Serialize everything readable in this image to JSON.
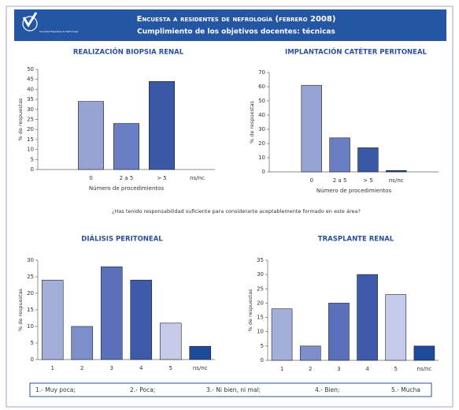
{
  "header": {
    "logo_text": "Sociedad Española de Nefrología",
    "title": "Encuesta a residentes de nefrología (febrero 2008)",
    "subtitle": "Cumplimiento de los objetivos docentes: técnicas"
  },
  "question": "¿Has tenido responsabilidad suficiente para considerarte aceptablemente formado en este área?",
  "legend_items": [
    "1.- Muy poca;",
    "2.- Poca;",
    "3.- Ni bien, ni mal;",
    "4.- Bien;",
    "5.- Mucha"
  ],
  "chart_data": [
    {
      "type": "bar",
      "title": "REALIZACIÓN BIOPSIA RENAL",
      "ylabel": "% de respuestas",
      "xlabel": "Número de procedimientos",
      "categories": [
        null,
        "0",
        "2 a 5",
        "> 5",
        "ns/nc"
      ],
      "values": [
        null,
        34,
        23,
        44,
        0
      ],
      "colors": [
        null,
        "#96a3d3",
        "#6a7fc3",
        "#3b58a6",
        "#1a4797"
      ],
      "ylim": [
        0,
        50
      ],
      "yticks": [
        0,
        5,
        10,
        15,
        20,
        25,
        30,
        35,
        40,
        45,
        50
      ]
    },
    {
      "type": "bar",
      "title": "IMPLANTACIÓN CATÉTER PERITONEAL",
      "ylabel": "% de respuestas",
      "xlabel": "Número de procedimientos",
      "categories": [
        null,
        "0",
        "2 a 5",
        "> 5",
        "ns/nc",
        null
      ],
      "values": [
        null,
        61,
        24,
        17,
        1,
        null
      ],
      "colors": [
        null,
        "#96a3d3",
        "#6a7fc3",
        "#3b58a6",
        "#1a4797",
        null
      ],
      "ylim": [
        0,
        70
      ],
      "yticks": [
        0,
        10,
        20,
        30,
        40,
        50,
        60,
        70
      ]
    },
    {
      "type": "bar",
      "title": "DIÁLISIS PERITONEAL",
      "ylabel": "% de respuestas",
      "categories": [
        "1",
        "2",
        "3",
        "4",
        "5",
        "ns/nc"
      ],
      "values": [
        24,
        10,
        28,
        24,
        11,
        4
      ],
      "colors": [
        "#a3aedb",
        "#7d8fcb",
        "#5a70ba",
        "#3e5aa8",
        "#c5cbe9",
        "#1e4a9a"
      ],
      "ylim": [
        0,
        30
      ],
      "yticks": [
        0,
        5,
        10,
        15,
        20,
        25,
        30
      ]
    },
    {
      "type": "bar",
      "title": "TRASPLANTE RENAL",
      "ylabel": "% de respuestas",
      "categories": [
        "1",
        "2",
        "3",
        "4",
        "5",
        "ns/nc"
      ],
      "values": [
        18,
        5,
        20,
        30,
        23,
        5
      ],
      "colors": [
        "#a3aedb",
        "#7d8fcb",
        "#5a70ba",
        "#3e5aa8",
        "#c5cbe9",
        "#1e4a9a"
      ],
      "ylim": [
        0,
        35
      ],
      "yticks": [
        0,
        5,
        10,
        15,
        20,
        25,
        30,
        35
      ]
    }
  ]
}
